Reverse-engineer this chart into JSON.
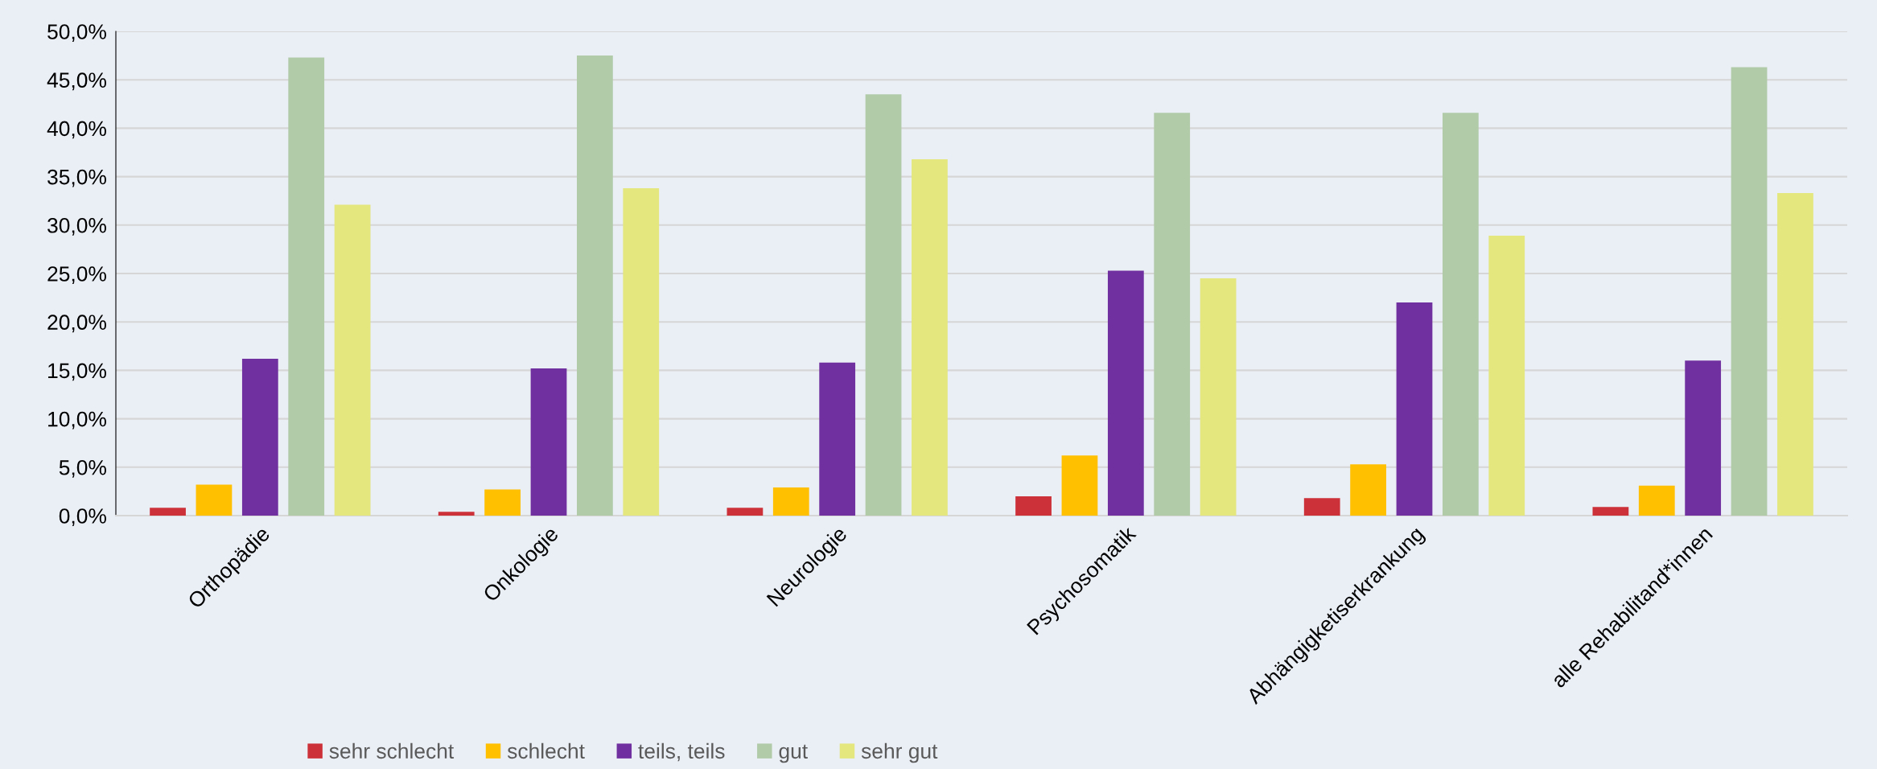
{
  "chart_data": {
    "type": "bar",
    "categories": [
      "Orthopädie",
      "Onkologie",
      "Neurologie",
      "Psychosomatik",
      "Abhängigketiserkrankung",
      "alle Rehabilitand*innen"
    ],
    "series": [
      {
        "name": "sehr schlecht",
        "color": "#cc3038",
        "values": [
          0.8,
          0.4,
          0.8,
          2.0,
          1.8,
          0.9
        ]
      },
      {
        "name": "schlecht",
        "color": "#ffc000",
        "values": [
          3.2,
          2.7,
          2.9,
          6.2,
          5.3,
          3.1
        ]
      },
      {
        "name": "teils, teils",
        "color": "#7030a0",
        "values": [
          16.2,
          15.2,
          15.8,
          25.3,
          22.0,
          16.0
        ]
      },
      {
        "name": "gut",
        "color": "#b1cba9",
        "values": [
          47.3,
          47.5,
          43.5,
          41.6,
          41.6,
          46.3
        ]
      },
      {
        "name": "sehr gut",
        "color": "#e3e77d",
        "values": [
          32.1,
          33.8,
          36.8,
          24.5,
          28.9,
          33.3
        ]
      }
    ],
    "ylim": [
      0,
      50
    ],
    "yticks": [
      {
        "value": 0,
        "label": "0,0%"
      },
      {
        "value": 5,
        "label": "5,0%"
      },
      {
        "value": 10,
        "label": "10,0%"
      },
      {
        "value": 15,
        "label": "15,0%"
      },
      {
        "value": 20,
        "label": "20,0%"
      },
      {
        "value": 25,
        "label": "25,0%"
      },
      {
        "value": 30,
        "label": "30,0%"
      },
      {
        "value": 35,
        "label": "35,0%"
      },
      {
        "value": 40,
        "label": "40,0%"
      },
      {
        "value": 45,
        "label": "45,0%"
      },
      {
        "value": 50,
        "label": "50,0%"
      }
    ],
    "grid": "y",
    "legend": "bottom"
  }
}
